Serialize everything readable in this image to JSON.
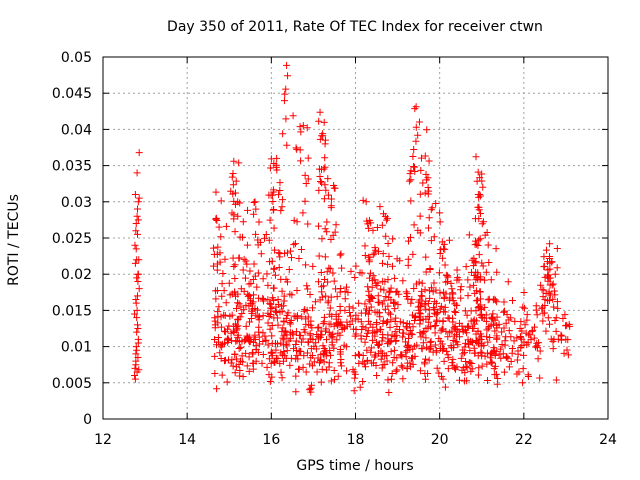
{
  "chart_data": {
    "type": "scatter",
    "title": "Day 350 of 2011, Rate Of TEC Index for receiver ctwn",
    "xlabel": "GPS time / hours",
    "ylabel": "ROTI / TECUs",
    "xlim": [
      12,
      24
    ],
    "ylim": [
      0,
      0.05
    ],
    "xticks": [
      "12",
      "14",
      "16",
      "18",
      "20",
      "22",
      "24"
    ],
    "yticks": [
      "0",
      "0.005",
      "0.01",
      "0.015",
      "0.02",
      "0.025",
      "0.03",
      "0.035",
      "0.04",
      "0.045",
      "0.05"
    ],
    "grid": true,
    "legend": "none",
    "marker": "plus",
    "color": "#ff0000",
    "series": [
      {
        "x": [
          12.75,
          12.76,
          12.77,
          12.78,
          12.78,
          12.79,
          12.8,
          12.8,
          12.81,
          12.82,
          12.83,
          12.84,
          12.85,
          12.76,
          12.78,
          12.79,
          12.81,
          12.82,
          12.84,
          12.77,
          12.8,
          12.83,
          12.86,
          12.79,
          12.82,
          12.84,
          12.8,
          12.83,
          12.78,
          12.81,
          12.85,
          12.77,
          12.79,
          12.82,
          12.84,
          12.86,
          12.8,
          12.83,
          12.75,
          12.78,
          12.81,
          12.86,
          12.84
        ],
        "y": [
          0.006,
          0.007,
          0.0055,
          0.008,
          0.009,
          0.01,
          0.012,
          0.014,
          0.015,
          0.017,
          0.019,
          0.02,
          0.022,
          0.024,
          0.026,
          0.027,
          0.028,
          0.029,
          0.03,
          0.031,
          0.022,
          0.02,
          0.018,
          0.016,
          0.013,
          0.011,
          0.0095,
          0.0085,
          0.0075,
          0.0065,
          0.0068,
          0.0215,
          0.0235,
          0.0255,
          0.0275,
          0.0305,
          0.0195,
          0.0125,
          0.0145,
          0.0165,
          0.034,
          0.0368,
          0.0105
        ],
        "name": ""
      }
    ]
  }
}
